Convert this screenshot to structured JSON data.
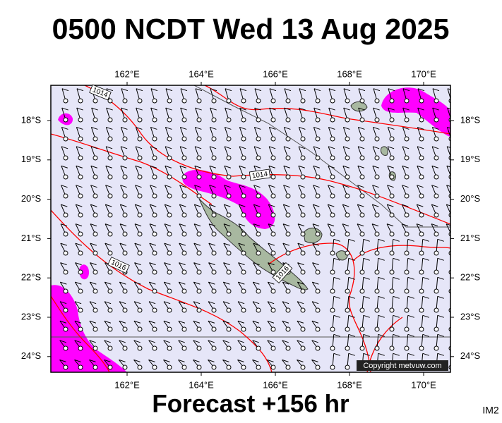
{
  "title": "0500 NCDT Wed 13 Aug 2025",
  "footer": "Forecast +156 hr",
  "image_id": "IM2",
  "copyright": "Copyright metvuw.com",
  "map": {
    "lon_ticks": [
      "162°E",
      "164°E",
      "166°E",
      "168°E",
      "170°E"
    ],
    "lat_ticks": [
      "18°S",
      "19°S",
      "20°S",
      "21°S",
      "22°S",
      "23°S",
      "24°S"
    ],
    "isobar_labels": [
      "1014",
      "1014",
      "1016",
      "1016"
    ]
  }
}
